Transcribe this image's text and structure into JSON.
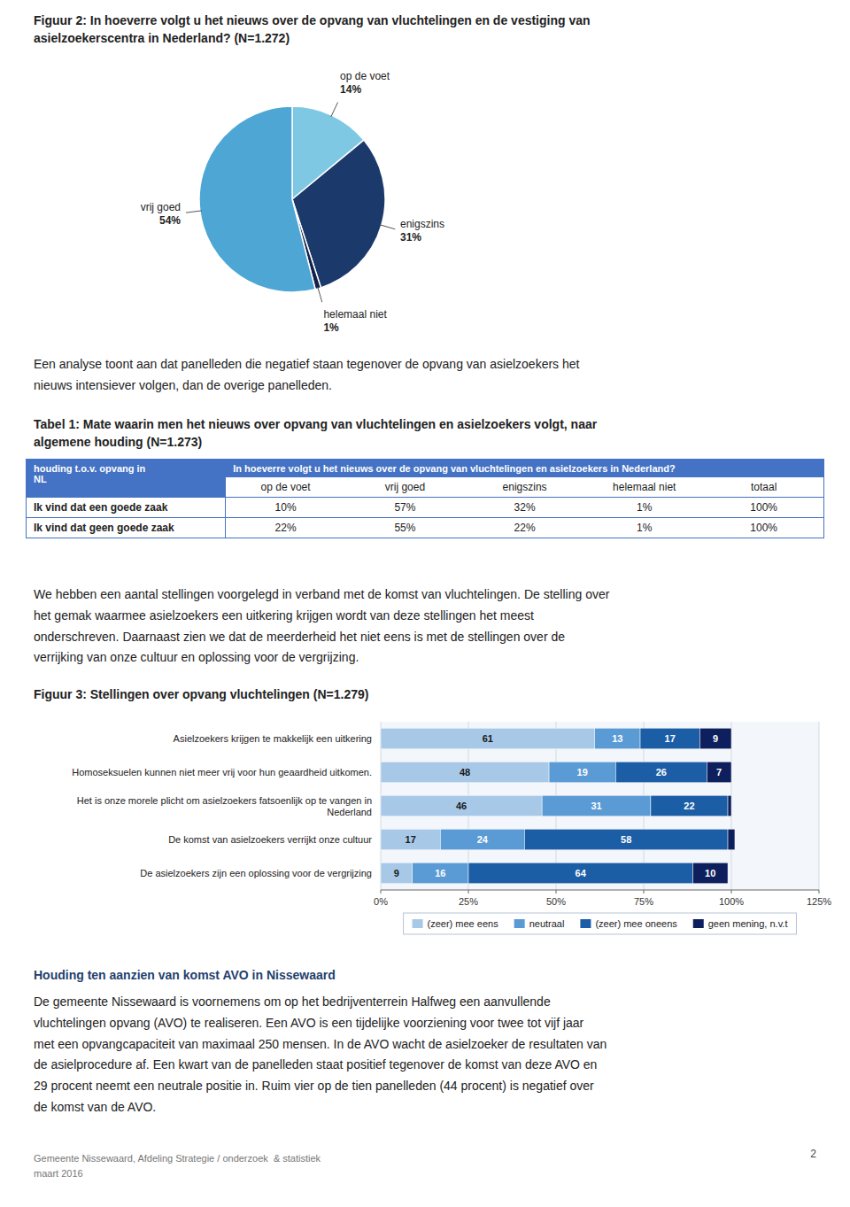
{
  "chart_data": [
    {
      "type": "pie",
      "title": "Figuur 2: In hoeverre volgt u het nieuws over de opvang van vluchtelingen en de vestiging van\nasielzoekerscentra in Nederland? (N=1.272)",
      "categories": [
        "op de voet",
        "enigszins",
        "helemaal niet",
        "vrij goed"
      ],
      "values": [
        14,
        31,
        1,
        54
      ],
      "value_labels": [
        "14%",
        "31%",
        "1%",
        "54%"
      ],
      "colors": [
        "#7EC8E3",
        "#1B3A6B",
        "#12204A",
        "#4DA6D4"
      ],
      "data_labels": true
    },
    {
      "type": "table",
      "title": "Tabel 1: Mate waarin men het nieuws over opvang van vluchtelingen en asielzoekers volgt, naar\nalgemene houding (N=1.273)",
      "row_header": "houding t.o.v. opvang in\nNL",
      "column_group": "In hoeverre volgt u het nieuws over de opvang van vluchtelingen en asielzoekers in Nederland?",
      "columns": [
        "op de voet",
        "vrij goed",
        "enigszins",
        "helemaal niet",
        "totaal"
      ],
      "rows": [
        {
          "name": "Ik vind dat een goede zaak",
          "values": [
            10,
            57,
            32,
            1,
            100
          ],
          "value_labels": [
            "10%",
            "57%",
            "32%",
            "1%",
            "100%"
          ]
        },
        {
          "name": "Ik vind dat geen goede zaak",
          "values": [
            22,
            55,
            22,
            1,
            100
          ],
          "value_labels": [
            "22%",
            "55%",
            "22%",
            "1%",
            "100%"
          ]
        }
      ],
      "color": "#4472C4"
    },
    {
      "type": "bar",
      "orientation": "horizontal",
      "stacked": true,
      "title": "Figuur 3: Stellingen over opvang vluchtelingen (N=1.279)",
      "categories": [
        "Asielzoekers krijgen te makkelijk een uitkering",
        "Homoseksuelen kunnen niet meer vrij voor hun geaardheid uitkomen.",
        "Het is onze morele plicht om asielzoekers fatsoenlijk op te vangen in\nNederland",
        "De komst van asielzoekers verrijkt onze cultuur",
        "De asielzoekers zijn een oplossing voor de vergrijzing"
      ],
      "series": [
        {
          "name": "(zeer) mee eens",
          "color": "#A8C8E8",
          "values": [
            61,
            48,
            46,
            17,
            9
          ]
        },
        {
          "name": "neutraal",
          "color": "#5B9BD5",
          "values": [
            13,
            19,
            31,
            24,
            16
          ]
        },
        {
          "name": "(zeer) mee oneens",
          "color": "#1B5EA6",
          "values": [
            17,
            26,
            22,
            58,
            64
          ]
        },
        {
          "name": "geen mening, n.v.t",
          "color": "#0D1F5C",
          "values": [
            9,
            7,
            1,
            2,
            10
          ]
        }
      ],
      "xlim": [
        0,
        125
      ],
      "xticks": [
        {
          "value": 0,
          "label": "0%"
        },
        {
          "value": 25,
          "label": "25%"
        },
        {
          "value": 50,
          "label": "50%"
        },
        {
          "value": 75,
          "label": "75%"
        },
        {
          "value": 100,
          "label": "100%"
        },
        {
          "value": 125,
          "label": "125%"
        }
      ],
      "grid": true,
      "legend": "bottom",
      "data_labels": true
    }
  ],
  "page": {
    "paragraphs": [
      "Een analyse toont aan dat panelleden die negatief staan tegenover de opvang van asielzoekers het\nnieuws intensiever volgen, dan de overige panelleden.",
      "We hebben een aantal stellingen voorgelegd in verband met de komst van vluchtelingen. De stelling over\nhet gemak waarmee asielzoekers een uitkering krijgen wordt van deze stellingen het meest\nonderschreven. Daarnaast zien we dat de meerderheid het niet eens is met de stellingen over de\nverrijking van onze cultuur en oplossing voor de vergrijzing.",
      "De gemeente Nissewaard is voornemens om op het bedrijventerrein Halfweg een aanvullende\nvluchtelingen opvang (AVO) te realiseren. Een AVO is een tijdelijke voorziening voor twee tot vijf jaar\nmet een opvangcapaciteit van maximaal 250 mensen. In de AVO wacht de asielzoeker de resultaten van\nde asielprocedure af. Een kwart van de panelleden staat positief tegenover de komst van deze AVO en\n29 procent neemt een neutrale positie in. Ruim vier op de tien panelleden (44 procent) is negatief over\nde komst van de AVO."
    ],
    "section_title": "Houding ten aanzien van komst AVO in Nissewaard",
    "footer": "Gemeente Nissewaard, Afdeling Strategie / onderzoek  & statistiek\nmaart 2016",
    "page_number": "2"
  }
}
